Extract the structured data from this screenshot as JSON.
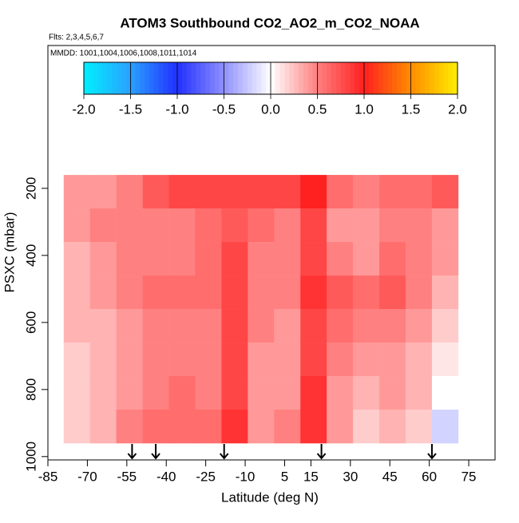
{
  "chart_data": {
    "type": "heatmap",
    "title": "ATOM3 Southbound CO2_AO2_m_CO2_NOAA",
    "subtitle": "Flts: 2,3,4,5,6,7",
    "annotation": "MMDD: 1001,1004,1006,1008,1011,1014",
    "x_label": "Latitude (deg N)",
    "y_label": "PSXC (mbar)",
    "xlim": [
      -85,
      85
    ],
    "ylim": [
      1010,
      -226
    ],
    "xticks": [
      -85,
      -70,
      -55,
      -40,
      -25,
      -10,
      5,
      15,
      30,
      45,
      60,
      75
    ],
    "yticks": [
      200,
      400,
      600,
      800,
      1000
    ],
    "x_edges": [
      -79,
      -69,
      -59,
      -49,
      -39,
      -29,
      -19,
      -9,
      1,
      11,
      21,
      31,
      41,
      51,
      61,
      71
    ],
    "y_edges": [
      160,
      260,
      360,
      460,
      560,
      660,
      760,
      860,
      960
    ],
    "values": [
      [
        0.4,
        0.4,
        0.5,
        0.7,
        0.8,
        0.8,
        0.8,
        0.8,
        0.8,
        1.0,
        0.6,
        0.5,
        0.6,
        0.6,
        0.7
      ],
      [
        0.4,
        0.5,
        0.5,
        0.5,
        0.5,
        0.6,
        0.7,
        0.6,
        0.5,
        0.8,
        0.4,
        0.4,
        0.5,
        0.5,
        0.4
      ],
      [
        0.3,
        0.4,
        0.5,
        0.5,
        0.5,
        0.6,
        0.8,
        0.5,
        0.5,
        0.8,
        0.5,
        0.4,
        0.6,
        0.5,
        0.4
      ],
      [
        0.3,
        0.4,
        0.5,
        0.6,
        0.6,
        0.6,
        0.8,
        0.5,
        0.5,
        0.9,
        0.7,
        0.6,
        0.7,
        0.5,
        0.3
      ],
      [
        0.3,
        0.3,
        0.4,
        0.5,
        0.5,
        0.5,
        0.8,
        0.5,
        0.4,
        0.8,
        0.6,
        0.5,
        0.5,
        0.4,
        0.2
      ],
      [
        0.2,
        0.3,
        0.4,
        0.5,
        0.5,
        0.5,
        0.8,
        0.4,
        0.4,
        0.8,
        0.5,
        0.4,
        0.4,
        0.3,
        0.1
      ],
      [
        0.2,
        0.3,
        0.4,
        0.5,
        0.6,
        0.5,
        0.8,
        0.4,
        0.4,
        0.9,
        0.4,
        0.3,
        0.4,
        0.3,
        0.0
      ],
      [
        0.2,
        0.3,
        0.5,
        0.6,
        0.6,
        0.6,
        0.9,
        0.4,
        0.5,
        0.9,
        0.4,
        0.2,
        0.3,
        0.2,
        -0.2
      ]
    ],
    "arrows_lat": [
      -53,
      -44,
      -18,
      19,
      61
    ],
    "colorbar": {
      "lim": [
        -2,
        2
      ],
      "ticks": [
        {
          "value": -2,
          "label": "-2.0"
        },
        {
          "value": -1.5,
          "label": "-1.5"
        },
        {
          "value": -1,
          "label": "-1.0"
        },
        {
          "value": -0.5,
          "label": "-0.5"
        },
        {
          "value": 0,
          "label": "0.0"
        },
        {
          "value": 0.5,
          "label": "0.5"
        },
        {
          "value": 1,
          "label": "1.0"
        },
        {
          "value": 1.5,
          "label": "1.5"
        },
        {
          "value": 2,
          "label": "2.0"
        }
      ],
      "colors": [
        "#00f0ff",
        "#2aa0ff",
        "#2030ff",
        "#9090ff",
        "#ffffff",
        "#ff8080",
        "#ff2020",
        "#ff8c00",
        "#ffee00"
      ]
    }
  }
}
